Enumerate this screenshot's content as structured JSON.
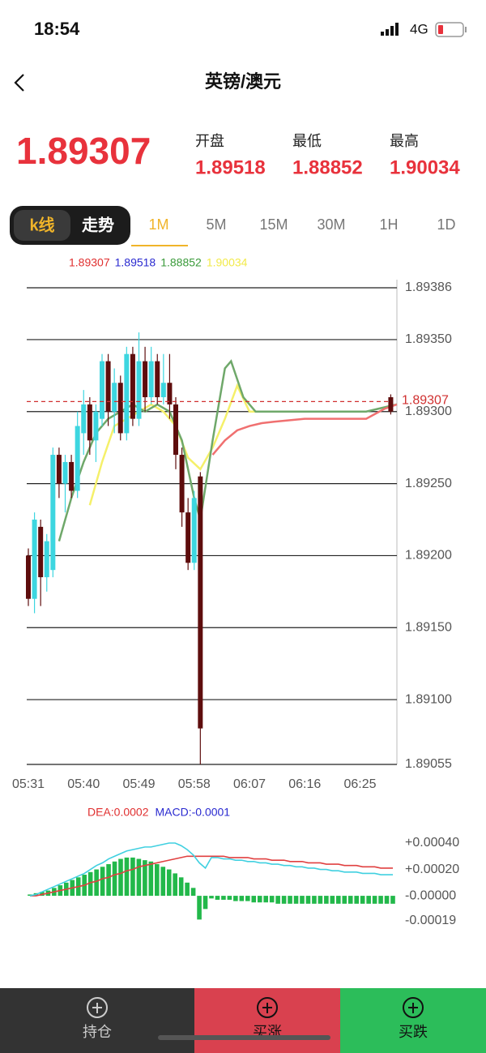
{
  "status_bar": {
    "time": "18:54",
    "network": "4G"
  },
  "header": {
    "title": "英镑/澳元"
  },
  "quote": {
    "price": 1.89307,
    "labels": [
      "开盘",
      "最低",
      "最高"
    ],
    "values": [
      1.89518,
      1.88852,
      1.90034
    ]
  },
  "tabs": {
    "modes": [
      "k线",
      "走势"
    ],
    "intervals": [
      "1M",
      "5M",
      "15M",
      "30M",
      "1H",
      "1D"
    ]
  },
  "chart_data": [
    {
      "type": "candlestick",
      "legend": [
        {
          "value": 1.89307,
          "color": "#e03030"
        },
        {
          "value": 1.89518,
          "color": "#2a2ad0"
        },
        {
          "value": 1.88852,
          "color": "#3a9a3a"
        },
        {
          "value": 1.90034,
          "color": "#f2ea4a"
        }
      ],
      "xlim": [
        0,
        60
      ],
      "xticks": [
        {
          "value": 0,
          "label": "05:31"
        },
        {
          "value": 9,
          "label": "05:40"
        },
        {
          "value": 18,
          "label": "05:49"
        },
        {
          "value": 27,
          "label": "05:58"
        },
        {
          "value": 36,
          "label": "06:07"
        },
        {
          "value": 45,
          "label": "06:16"
        },
        {
          "value": 54,
          "label": "06:25"
        }
      ],
      "ylim": [
        1.89055,
        1.89386
      ],
      "yticks": [
        {
          "value": 1.89055,
          "label": "1.89055"
        },
        {
          "value": 1.891,
          "label": "1.89100"
        },
        {
          "value": 1.8915,
          "label": "1.89150"
        },
        {
          "value": 1.892,
          "label": "1.89200"
        },
        {
          "value": 1.8925,
          "label": "1.89250"
        },
        {
          "value": 1.893,
          "label": "1.89300"
        },
        {
          "value": 1.8935,
          "label": "1.89350"
        },
        {
          "value": 1.89386,
          "label": "1.89386"
        }
      ],
      "grid": true,
      "up_color": "#3dd6e0",
      "down_color": "#5e0d0d",
      "candles": {
        "x": [
          0,
          1,
          2,
          3,
          4,
          5,
          6,
          7,
          8,
          9,
          10,
          11,
          12,
          13,
          14,
          15,
          16,
          17,
          18,
          19,
          20,
          21,
          22,
          23,
          24,
          25,
          26,
          27,
          28,
          59
        ],
        "open": [
          1.892,
          1.8917,
          1.8922,
          1.89185,
          1.8919,
          1.8927,
          1.8925,
          1.89265,
          1.89245,
          1.89285,
          1.89305,
          1.8928,
          1.89295,
          1.89335,
          1.893,
          1.8932,
          1.89285,
          1.8934,
          1.89295,
          1.89335,
          1.8931,
          1.89335,
          1.8931,
          1.8932,
          1.89305,
          1.8927,
          1.8923,
          1.89195,
          1.89255,
          1.8931
        ],
        "high": [
          1.89205,
          1.8923,
          1.89225,
          1.89215,
          1.89275,
          1.89275,
          1.8927,
          1.8927,
          1.893,
          1.89315,
          1.8931,
          1.89305,
          1.8934,
          1.8934,
          1.8933,
          1.89325,
          1.89345,
          1.89345,
          1.89355,
          1.89345,
          1.89345,
          1.8934,
          1.8934,
          1.8934,
          1.8931,
          1.89275,
          1.8924,
          1.89245,
          1.89258,
          1.89312
        ],
        "low": [
          1.89165,
          1.8916,
          1.89165,
          1.89175,
          1.89185,
          1.8924,
          1.8923,
          1.8924,
          1.8924,
          1.8927,
          1.8927,
          1.89265,
          1.8929,
          1.8929,
          1.89285,
          1.8928,
          1.8928,
          1.8929,
          1.8929,
          1.893,
          1.89305,
          1.89305,
          1.89305,
          1.89295,
          1.8926,
          1.8922,
          1.8919,
          1.8919,
          1.89055,
          1.89298
        ],
        "close": [
          1.8917,
          1.89225,
          1.89185,
          1.8921,
          1.8927,
          1.8925,
          1.89265,
          1.89245,
          1.8929,
          1.89305,
          1.8928,
          1.893,
          1.89335,
          1.893,
          1.8932,
          1.89285,
          1.8934,
          1.89295,
          1.89335,
          1.8931,
          1.89335,
          1.8931,
          1.8932,
          1.89305,
          1.8927,
          1.8923,
          1.89195,
          1.8924,
          1.8908,
          1.893
        ]
      },
      "lines": [
        {
          "color": "#f5f06a",
          "x": [
            10,
            12,
            14,
            16,
            18,
            20,
            22,
            24,
            26,
            28,
            30,
            32,
            34,
            36,
            38,
            40
          ],
          "values": [
            1.89235,
            1.89265,
            1.8929,
            1.89295,
            1.893,
            1.89305,
            1.893,
            1.8929,
            1.89268,
            1.8926,
            1.89275,
            1.89295,
            1.89318,
            1.893,
            1.893,
            1.893
          ]
        },
        {
          "color": "#6fa86a",
          "x": [
            5,
            7,
            9,
            11,
            13,
            15,
            17,
            19,
            21,
            23,
            25,
            27,
            28,
            30,
            32,
            33,
            35,
            37,
            40,
            45,
            50,
            55,
            60
          ],
          "values": [
            1.8921,
            1.8924,
            1.89265,
            1.89285,
            1.89295,
            1.893,
            1.89305,
            1.893,
            1.89305,
            1.893,
            1.8928,
            1.8924,
            1.89225,
            1.8928,
            1.8933,
            1.89335,
            1.8931,
            1.893,
            1.893,
            1.893,
            1.893,
            1.893,
            1.89305
          ]
        },
        {
          "color": "#f07070",
          "x": [
            30,
            32,
            34,
            36,
            38,
            40,
            45,
            50,
            55,
            58,
            60
          ],
          "values": [
            1.8927,
            1.8928,
            1.89287,
            1.8929,
            1.89292,
            1.89293,
            1.89295,
            1.89295,
            1.89295,
            1.89302,
            1.89305
          ]
        }
      ],
      "price_line": {
        "value": 1.89307,
        "color": "#d03030"
      }
    },
    {
      "type": "macd",
      "legend": [
        "DEA:0.0002",
        "MACD:-0.0001"
      ],
      "legend_colors": [
        "#e03030",
        "#2a2ad0"
      ],
      "xlim": [
        0,
        60
      ],
      "ylim": [
        -0.00019,
        0.0004
      ],
      "yticks": [
        {
          "value": 0.0004,
          "label": "+0.00040"
        },
        {
          "value": 0.0002,
          "label": "+0.00020"
        },
        {
          "value": 0,
          "label": "-0.00000"
        },
        {
          "value": -0.00019,
          "label": "-0.00019"
        }
      ],
      "x": [
        0,
        1,
        2,
        3,
        4,
        5,
        6,
        7,
        8,
        9,
        10,
        11,
        12,
        13,
        14,
        15,
        16,
        17,
        18,
        19,
        20,
        21,
        22,
        23,
        24,
        25,
        26,
        27,
        28,
        29,
        30,
        31,
        32,
        33,
        34,
        35,
        36,
        37,
        38,
        39,
        40,
        41,
        42,
        43,
        44,
        45,
        46,
        47,
        48,
        49,
        50,
        51,
        52,
        53,
        54,
        55,
        56,
        57,
        58,
        59,
        60
      ],
      "bars": {
        "color": "#22b84a",
        "values": [
          1e-05,
          2e-05,
          3e-05,
          4e-05,
          6e-05,
          8e-05,
          0.0001,
          0.00012,
          0.00014,
          0.00016,
          0.00018,
          0.0002,
          0.00022,
          0.00024,
          0.00026,
          0.00028,
          0.00029,
          0.00029,
          0.00028,
          0.00027,
          0.00026,
          0.00024,
          0.00022,
          0.0002,
          0.00017,
          0.00014,
          0.0001,
          6e-05,
          -0.00018,
          -0.0001,
          -2e-05,
          -3e-05,
          -3e-05,
          -3e-05,
          -4e-05,
          -4e-05,
          -4e-05,
          -5e-05,
          -5e-05,
          -5e-05,
          -5e-05,
          -6e-05,
          -6e-05,
          -6e-05,
          -6e-05,
          -6e-05,
          -6e-05,
          -6e-05,
          -6e-05,
          -6e-05,
          -6e-05,
          -6e-05,
          -6e-05,
          -6e-05,
          -6e-05,
          -6e-05,
          -6e-05,
          -6e-05,
          -6e-05,
          -6e-05,
          -6e-05
        ]
      },
      "series": [
        {
          "color": "#e04040",
          "values": [
            0.0,
            0.0,
            1e-05,
            2e-05,
            3e-05,
            4e-05,
            5e-05,
            6e-05,
            7e-05,
            8e-05,
            0.0001,
            0.00011,
            0.00013,
            0.00014,
            0.00016,
            0.00017,
            0.00019,
            0.0002,
            0.00022,
            0.00023,
            0.00024,
            0.00025,
            0.00026,
            0.00027,
            0.00028,
            0.00029,
            0.0003,
            0.0003,
            0.0003,
            0.0003,
            0.0003,
            0.0003,
            0.0003,
            0.00029,
            0.00029,
            0.00029,
            0.00029,
            0.00028,
            0.00028,
            0.00028,
            0.00027,
            0.00027,
            0.00027,
            0.00026,
            0.00026,
            0.00026,
            0.00025,
            0.00025,
            0.00025,
            0.00024,
            0.00024,
            0.00024,
            0.00023,
            0.00023,
            0.00023,
            0.00022,
            0.00022,
            0.00022,
            0.00021,
            0.00021,
            0.00021
          ]
        },
        {
          "color": "#40d0e0",
          "values": [
            0.0,
            1e-05,
            3e-05,
            5e-05,
            7e-05,
            9e-05,
            0.00011,
            0.00013,
            0.00015,
            0.00017,
            0.0002,
            0.00023,
            0.00025,
            0.00028,
            0.0003,
            0.00032,
            0.00034,
            0.00035,
            0.00036,
            0.00037,
            0.00037,
            0.00038,
            0.00039,
            0.0004,
            0.0004,
            0.00038,
            0.00035,
            0.00031,
            0.00025,
            0.00021,
            0.00029,
            0.00029,
            0.00028,
            0.00028,
            0.00027,
            0.00027,
            0.00026,
            0.00026,
            0.00025,
            0.00025,
            0.00024,
            0.00024,
            0.00023,
            0.00023,
            0.00022,
            0.00022,
            0.00021,
            0.00021,
            0.0002,
            0.0002,
            0.00019,
            0.00019,
            0.00018,
            0.00018,
            0.00018,
            0.00017,
            0.00017,
            0.00017,
            0.00016,
            0.00016,
            0.00016
          ]
        }
      ]
    }
  ],
  "bottom_bar": {
    "buttons": [
      "持仓",
      "买涨",
      "买跌"
    ]
  }
}
